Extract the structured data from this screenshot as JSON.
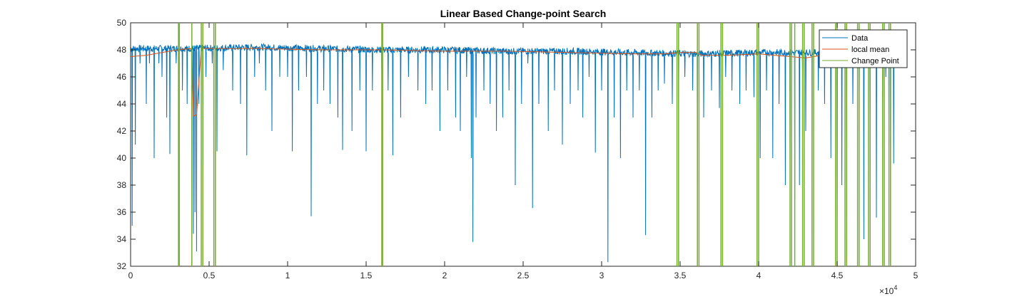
{
  "chart_data": {
    "type": "line",
    "title": "Linear Based Change-point Search",
    "xlabel": "",
    "ylabel": "",
    "xlim": [
      0,
      50000
    ],
    "ylim": [
      32,
      50
    ],
    "x_ticks": [
      0,
      5000,
      10000,
      15000,
      20000,
      25000,
      30000,
      35000,
      40000,
      45000,
      50000
    ],
    "x_tick_labels": [
      "0",
      "0.5",
      "1",
      "1.5",
      "2",
      "2.5",
      "3",
      "3.5",
      "4",
      "4.5",
      "5"
    ],
    "x_multiplier": "×10",
    "x_multiplier_exp": "4",
    "y_ticks": [
      32,
      34,
      36,
      38,
      40,
      42,
      44,
      46,
      48,
      50
    ],
    "y_tick_labels": [
      "32",
      "34",
      "36",
      "38",
      "40",
      "42",
      "44",
      "46",
      "48",
      "50"
    ],
    "grid": false,
    "legend_position": "top-right",
    "series": [
      {
        "name": "Data",
        "color": "#0072BD",
        "baseline": [
          [
            0,
            48.1
          ],
          [
            4000,
            48.1
          ],
          [
            8000,
            48.2
          ],
          [
            12000,
            48.1
          ],
          [
            16000,
            48.0
          ],
          [
            20000,
            48.0
          ],
          [
            24000,
            47.9
          ],
          [
            28000,
            47.9
          ],
          [
            32000,
            47.8
          ],
          [
            36000,
            47.7
          ],
          [
            40000,
            47.8
          ],
          [
            44000,
            47.8
          ],
          [
            48800,
            47.7
          ]
        ],
        "dips": [
          [
            100,
            35
          ],
          [
            300,
            41
          ],
          [
            600,
            47
          ],
          [
            1000,
            44
          ],
          [
            1200,
            47
          ],
          [
            1500,
            40
          ],
          [
            1800,
            47
          ],
          [
            2000,
            46
          ],
          [
            2300,
            43
          ],
          [
            2500,
            40.3
          ],
          [
            2900,
            47
          ],
          [
            3300,
            45
          ],
          [
            3600,
            44
          ],
          [
            3900,
            37
          ],
          [
            4000,
            34.4
          ],
          [
            4100,
            36
          ],
          [
            4200,
            33.1
          ],
          [
            4350,
            44
          ],
          [
            4600,
            39.4
          ],
          [
            4800,
            46
          ],
          [
            5200,
            47
          ],
          [
            5500,
            40.5
          ],
          [
            5900,
            46.5
          ],
          [
            6500,
            45
          ],
          [
            7000,
            44
          ],
          [
            7400,
            40.2
          ],
          [
            7900,
            46
          ],
          [
            8200,
            47
          ],
          [
            8600,
            45
          ],
          [
            9000,
            42
          ],
          [
            9500,
            46
          ],
          [
            10000,
            46
          ],
          [
            10300,
            40.5
          ],
          [
            10700,
            45
          ],
          [
            11200,
            46
          ],
          [
            11500,
            35.7
          ],
          [
            11900,
            44
          ],
          [
            12300,
            45
          ],
          [
            12700,
            44
          ],
          [
            13200,
            43
          ],
          [
            13500,
            40.6
          ],
          [
            14100,
            42
          ],
          [
            14600,
            45
          ],
          [
            15000,
            40.5
          ],
          [
            15400,
            45
          ],
          [
            16000,
            46
          ],
          [
            16400,
            45
          ],
          [
            16700,
            40.2
          ],
          [
            17200,
            43
          ],
          [
            17700,
            46
          ],
          [
            18300,
            45
          ],
          [
            18800,
            44
          ],
          [
            19200,
            45
          ],
          [
            19700,
            42
          ],
          [
            20200,
            45
          ],
          [
            20700,
            43
          ],
          [
            21000,
            42
          ],
          [
            21400,
            46
          ],
          [
            21700,
            40
          ],
          [
            21800,
            33.8
          ],
          [
            22000,
            43
          ],
          [
            22500,
            45
          ],
          [
            22900,
            44
          ],
          [
            23300,
            42
          ],
          [
            23700,
            43
          ],
          [
            24100,
            45
          ],
          [
            24500,
            38
          ],
          [
            24900,
            44
          ],
          [
            25300,
            47
          ],
          [
            25600,
            36.3
          ],
          [
            26000,
            44
          ],
          [
            26600,
            42
          ],
          [
            27000,
            45
          ],
          [
            27500,
            41
          ],
          [
            28000,
            44
          ],
          [
            28500,
            45
          ],
          [
            28800,
            43
          ],
          [
            29200,
            46
          ],
          [
            29600,
            40.4
          ],
          [
            30000,
            45
          ],
          [
            30400,
            32.3
          ],
          [
            30800,
            43
          ],
          [
            31200,
            40
          ],
          [
            31600,
            45
          ],
          [
            32000,
            43
          ],
          [
            32400,
            45
          ],
          [
            32800,
            34.3
          ],
          [
            33200,
            43
          ],
          [
            33600,
            45
          ],
          [
            34000,
            45.5
          ],
          [
            34500,
            44
          ],
          [
            34900,
            44
          ],
          [
            35300,
            46
          ],
          [
            35800,
            45
          ],
          [
            36100,
            38
          ],
          [
            36500,
            43
          ],
          [
            37000,
            45
          ],
          [
            37500,
            43.7
          ],
          [
            37900,
            46
          ],
          [
            38300,
            45
          ],
          [
            38800,
            44
          ],
          [
            39200,
            45
          ],
          [
            39700,
            44.5
          ],
          [
            40100,
            40
          ],
          [
            40500,
            45
          ],
          [
            40900,
            40
          ],
          [
            41300,
            44
          ],
          [
            41700,
            38
          ],
          [
            42000,
            39.5
          ],
          [
            42300,
            37
          ],
          [
            42600,
            38
          ],
          [
            42800,
            46
          ],
          [
            43000,
            42
          ],
          [
            43400,
            33.3
          ],
          [
            43800,
            45
          ],
          [
            44200,
            44
          ],
          [
            44600,
            40
          ],
          [
            45000,
            35
          ],
          [
            45300,
            38
          ],
          [
            45600,
            33
          ],
          [
            46000,
            44
          ],
          [
            46400,
            42
          ],
          [
            46700,
            34
          ],
          [
            47100,
            38
          ],
          [
            47500,
            35.6
          ],
          [
            47900,
            40
          ],
          [
            48100,
            46
          ],
          [
            48300,
            41
          ],
          [
            48400,
            32.3
          ],
          [
            48600,
            39.6
          ]
        ]
      },
      {
        "name": "local mean",
        "color": "#D95319",
        "points": [
          [
            0,
            47.5
          ],
          [
            1000,
            47.6
          ],
          [
            2000,
            47.8
          ],
          [
            3000,
            48.0
          ],
          [
            3900,
            48.1
          ],
          [
            4000,
            43.1
          ],
          [
            4200,
            43.2
          ],
          [
            4500,
            48.1
          ],
          [
            5000,
            48.1
          ],
          [
            8000,
            48.1
          ],
          [
            12000,
            48.0
          ],
          [
            16000,
            48.0
          ],
          [
            20000,
            47.9
          ],
          [
            24000,
            47.9
          ],
          [
            28000,
            47.8
          ],
          [
            32000,
            47.7
          ],
          [
            34000,
            47.7
          ],
          [
            35000,
            47.8
          ],
          [
            36000,
            47.8
          ],
          [
            36400,
            47.6
          ],
          [
            38000,
            47.6
          ],
          [
            40000,
            47.7
          ],
          [
            42000,
            47.5
          ],
          [
            43000,
            47.4
          ],
          [
            44000,
            47.6
          ],
          [
            45000,
            47.8
          ],
          [
            46000,
            47.6
          ],
          [
            47000,
            47.7
          ],
          [
            48000,
            47.5
          ],
          [
            48800,
            47.5
          ]
        ]
      },
      {
        "name": "Change Point",
        "color": "#77AC30",
        "x_values": [
          3050,
          3100,
          3900,
          4500,
          4600,
          5300,
          5400,
          16000,
          16050,
          34800,
          34900,
          36100,
          36200,
          37600,
          37700,
          39900,
          40000,
          42000,
          42100,
          42300,
          42800,
          42900,
          43400,
          43500,
          44900,
          45000,
          45500,
          45600,
          46300,
          46400,
          47000,
          47100,
          47900,
          48000,
          48300,
          48400
        ]
      }
    ]
  }
}
